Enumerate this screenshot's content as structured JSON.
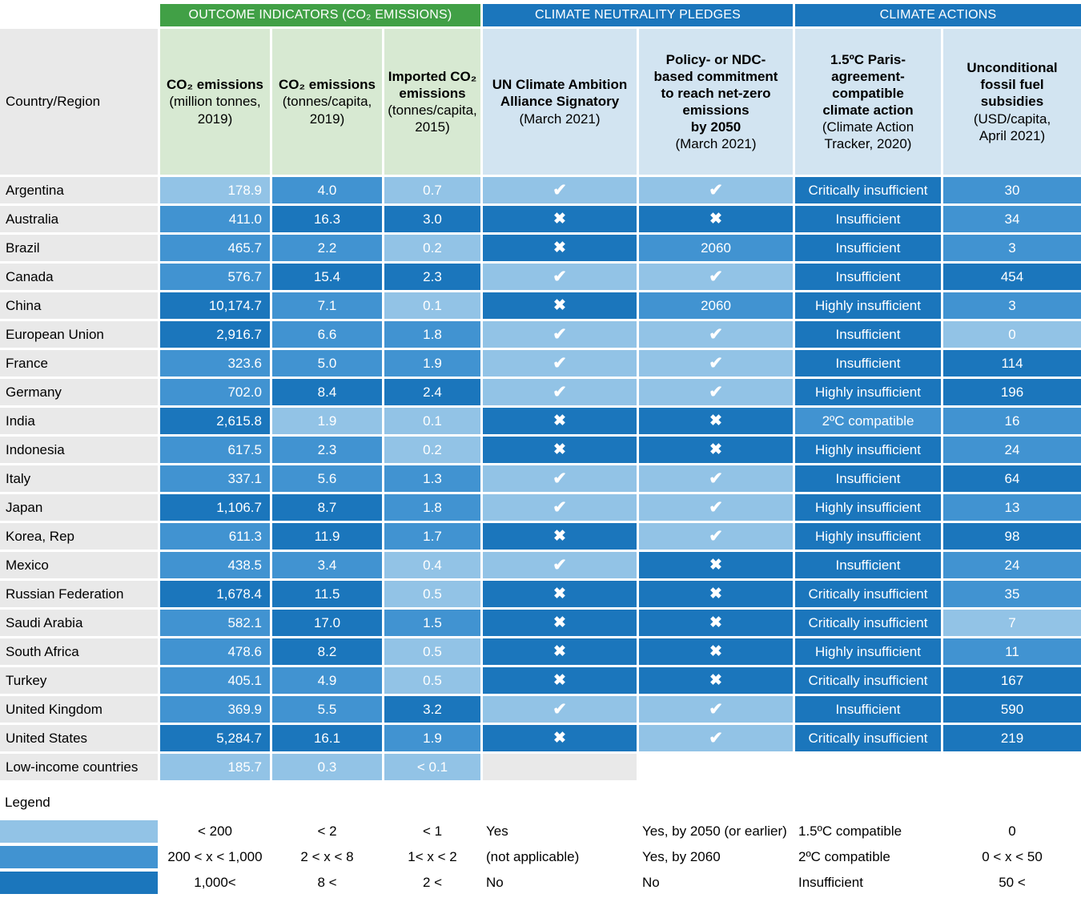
{
  "groups": [
    {
      "label": "OUTCOME INDICATORS (CO₂ EMISSIONS)"
    },
    {
      "label": "CLIMATE NEUTRALITY PLEDGES"
    },
    {
      "label": "CLIMATE ACTIONS"
    }
  ],
  "corner_label": "Country/Region",
  "chart_data": {
    "type": "table",
    "columns": [
      {
        "title": "CO₂ emissions",
        "subtitle": "(million tonnes,\n2019)",
        "group": "outcome",
        "theme": "green",
        "align": "right"
      },
      {
        "title": "CO₂ emissions",
        "subtitle": "(tonnes/capita,\n2019)",
        "group": "outcome",
        "theme": "green",
        "align": "center"
      },
      {
        "title": "Imported CO₂\nemissions",
        "subtitle": "(tonnes/capita,\n2015)",
        "group": "outcome",
        "theme": "green",
        "align": "center"
      },
      {
        "title": "UN Climate Ambition\nAlliance Signatory",
        "subtitle": "(March 2021)",
        "group": "pledges",
        "theme": "blue",
        "align": "center"
      },
      {
        "title": "Policy- or NDC-\nbased commitment\nto reach net-zero\nemissions\nby 2050",
        "subtitle": "(March 2021)",
        "group": "pledges",
        "theme": "blue",
        "align": "center"
      },
      {
        "title": "1.5ºC Paris-\nagreement-\ncompatible\nclimate action",
        "subtitle": "(Climate Action\nTracker, 2020)",
        "group": "actions",
        "theme": "blue",
        "align": "center"
      },
      {
        "title": "Unconditional\nfossil fuel\nsubsidies",
        "subtitle": "(USD/capita,\nApril 2021)",
        "group": "actions",
        "theme": "blue",
        "align": "center"
      }
    ],
    "rows": [
      {
        "country": "Argentina",
        "cells": [
          {
            "value": "178.9",
            "shade": "light"
          },
          {
            "value": "4.0",
            "shade": "mid"
          },
          {
            "value": "0.7",
            "shade": "light"
          },
          {
            "icon": "check",
            "shade": "light"
          },
          {
            "icon": "check",
            "shade": "light"
          },
          {
            "value": "Critically insufficient",
            "shade": "dark"
          },
          {
            "value": "30",
            "shade": "mid"
          }
        ]
      },
      {
        "country": "Australia",
        "cells": [
          {
            "value": "411.0",
            "shade": "mid"
          },
          {
            "value": "16.3",
            "shade": "dark"
          },
          {
            "value": "3.0",
            "shade": "dark"
          },
          {
            "icon": "cross",
            "shade": "dark"
          },
          {
            "icon": "cross",
            "shade": "dark"
          },
          {
            "value": "Insufficient",
            "shade": "dark"
          },
          {
            "value": "34",
            "shade": "mid"
          }
        ]
      },
      {
        "country": "Brazil",
        "cells": [
          {
            "value": "465.7",
            "shade": "mid"
          },
          {
            "value": "2.2",
            "shade": "mid"
          },
          {
            "value": "0.2",
            "shade": "light"
          },
          {
            "icon": "cross",
            "shade": "dark"
          },
          {
            "value": "2060",
            "shade": "mid"
          },
          {
            "value": "Insufficient",
            "shade": "dark"
          },
          {
            "value": "3",
            "shade": "mid"
          }
        ]
      },
      {
        "country": "Canada",
        "cells": [
          {
            "value": "576.7",
            "shade": "mid"
          },
          {
            "value": "15.4",
            "shade": "dark"
          },
          {
            "value": "2.3",
            "shade": "dark"
          },
          {
            "icon": "check",
            "shade": "light"
          },
          {
            "icon": "check",
            "shade": "light"
          },
          {
            "value": "Insufficient",
            "shade": "dark"
          },
          {
            "value": "454",
            "shade": "dark"
          }
        ]
      },
      {
        "country": "China",
        "cells": [
          {
            "value": "10,174.7",
            "shade": "dark"
          },
          {
            "value": "7.1",
            "shade": "mid"
          },
          {
            "value": "0.1",
            "shade": "light"
          },
          {
            "icon": "cross",
            "shade": "dark"
          },
          {
            "value": "2060",
            "shade": "mid"
          },
          {
            "value": "Highly insufficient",
            "shade": "dark"
          },
          {
            "value": "3",
            "shade": "mid"
          }
        ]
      },
      {
        "country": "European Union",
        "cells": [
          {
            "value": "2,916.7",
            "shade": "dark"
          },
          {
            "value": "6.6",
            "shade": "mid"
          },
          {
            "value": "1.8",
            "shade": "mid"
          },
          {
            "icon": "check",
            "shade": "light"
          },
          {
            "icon": "check",
            "shade": "light"
          },
          {
            "value": "Insufficient",
            "shade": "dark"
          },
          {
            "value": "0",
            "shade": "light"
          }
        ]
      },
      {
        "country": "France",
        "cells": [
          {
            "value": "323.6",
            "shade": "mid"
          },
          {
            "value": "5.0",
            "shade": "mid"
          },
          {
            "value": "1.9",
            "shade": "mid"
          },
          {
            "icon": "check",
            "shade": "light"
          },
          {
            "icon": "check",
            "shade": "light"
          },
          {
            "value": "Insufficient",
            "shade": "dark"
          },
          {
            "value": "114",
            "shade": "dark"
          }
        ]
      },
      {
        "country": "Germany",
        "cells": [
          {
            "value": "702.0",
            "shade": "mid"
          },
          {
            "value": "8.4",
            "shade": "dark"
          },
          {
            "value": "2.4",
            "shade": "dark"
          },
          {
            "icon": "check",
            "shade": "light"
          },
          {
            "icon": "check",
            "shade": "light"
          },
          {
            "value": "Highly insufficient",
            "shade": "dark"
          },
          {
            "value": "196",
            "shade": "dark"
          }
        ]
      },
      {
        "country": "India",
        "cells": [
          {
            "value": "2,615.8",
            "shade": "dark"
          },
          {
            "value": "1.9",
            "shade": "light"
          },
          {
            "value": "0.1",
            "shade": "light"
          },
          {
            "icon": "cross",
            "shade": "dark"
          },
          {
            "icon": "cross",
            "shade": "dark"
          },
          {
            "value": "2ºC compatible",
            "shade": "mid"
          },
          {
            "value": "16",
            "shade": "mid"
          }
        ]
      },
      {
        "country": "Indonesia",
        "cells": [
          {
            "value": "617.5",
            "shade": "mid"
          },
          {
            "value": "2.3",
            "shade": "mid"
          },
          {
            "value": "0.2",
            "shade": "light"
          },
          {
            "icon": "cross",
            "shade": "dark"
          },
          {
            "icon": "cross",
            "shade": "dark"
          },
          {
            "value": "Highly insufficient",
            "shade": "dark"
          },
          {
            "value": "24",
            "shade": "mid"
          }
        ]
      },
      {
        "country": "Italy",
        "cells": [
          {
            "value": "337.1",
            "shade": "mid"
          },
          {
            "value": "5.6",
            "shade": "mid"
          },
          {
            "value": "1.3",
            "shade": "mid"
          },
          {
            "icon": "check",
            "shade": "light"
          },
          {
            "icon": "check",
            "shade": "light"
          },
          {
            "value": "Insufficient",
            "shade": "dark"
          },
          {
            "value": "64",
            "shade": "dark"
          }
        ]
      },
      {
        "country": "Japan",
        "cells": [
          {
            "value": "1,106.7",
            "shade": "dark"
          },
          {
            "value": "8.7",
            "shade": "dark"
          },
          {
            "value": "1.8",
            "shade": "mid"
          },
          {
            "icon": "check",
            "shade": "light"
          },
          {
            "icon": "check",
            "shade": "light"
          },
          {
            "value": "Highly insufficient",
            "shade": "dark"
          },
          {
            "value": "13",
            "shade": "mid"
          }
        ]
      },
      {
        "country": "Korea, Rep",
        "cells": [
          {
            "value": "611.3",
            "shade": "mid"
          },
          {
            "value": "11.9",
            "shade": "dark"
          },
          {
            "value": "1.7",
            "shade": "mid"
          },
          {
            "icon": "cross",
            "shade": "dark"
          },
          {
            "icon": "check",
            "shade": "light"
          },
          {
            "value": "Highly insufficient",
            "shade": "dark"
          },
          {
            "value": "98",
            "shade": "dark"
          }
        ]
      },
      {
        "country": "Mexico",
        "cells": [
          {
            "value": "438.5",
            "shade": "mid"
          },
          {
            "value": "3.4",
            "shade": "mid"
          },
          {
            "value": "0.4",
            "shade": "light"
          },
          {
            "icon": "check",
            "shade": "light"
          },
          {
            "icon": "cross",
            "shade": "dark"
          },
          {
            "value": "Insufficient",
            "shade": "dark"
          },
          {
            "value": "24",
            "shade": "mid"
          }
        ]
      },
      {
        "country": "Russian Federation",
        "cells": [
          {
            "value": "1,678.4",
            "shade": "dark"
          },
          {
            "value": "11.5",
            "shade": "dark"
          },
          {
            "value": "0.5",
            "shade": "light"
          },
          {
            "icon": "cross",
            "shade": "dark"
          },
          {
            "icon": "cross",
            "shade": "dark"
          },
          {
            "value": "Critically insufficient",
            "shade": "dark"
          },
          {
            "value": "35",
            "shade": "mid"
          }
        ]
      },
      {
        "country": "Saudi Arabia",
        "cells": [
          {
            "value": "582.1",
            "shade": "mid"
          },
          {
            "value": "17.0",
            "shade": "dark"
          },
          {
            "value": "1.5",
            "shade": "mid"
          },
          {
            "icon": "cross",
            "shade": "dark"
          },
          {
            "icon": "cross",
            "shade": "dark"
          },
          {
            "value": "Critically insufficient",
            "shade": "dark"
          },
          {
            "value": "7",
            "shade": "light"
          }
        ]
      },
      {
        "country": "South Africa",
        "cells": [
          {
            "value": "478.6",
            "shade": "mid"
          },
          {
            "value": "8.2",
            "shade": "dark"
          },
          {
            "value": "0.5",
            "shade": "light"
          },
          {
            "icon": "cross",
            "shade": "dark"
          },
          {
            "icon": "cross",
            "shade": "dark"
          },
          {
            "value": "Highly insufficient",
            "shade": "dark"
          },
          {
            "value": "11",
            "shade": "mid"
          }
        ]
      },
      {
        "country": "Turkey",
        "cells": [
          {
            "value": "405.1",
            "shade": "mid"
          },
          {
            "value": "4.9",
            "shade": "mid"
          },
          {
            "value": "0.5",
            "shade": "light"
          },
          {
            "icon": "cross",
            "shade": "dark"
          },
          {
            "icon": "cross",
            "shade": "dark"
          },
          {
            "value": "Critically insufficient",
            "shade": "dark"
          },
          {
            "value": "167",
            "shade": "dark"
          }
        ]
      },
      {
        "country": "United Kingdom",
        "cells": [
          {
            "value": "369.9",
            "shade": "mid"
          },
          {
            "value": "5.5",
            "shade": "mid"
          },
          {
            "value": "3.2",
            "shade": "dark"
          },
          {
            "icon": "check",
            "shade": "light"
          },
          {
            "icon": "check",
            "shade": "light"
          },
          {
            "value": "Insufficient",
            "shade": "dark"
          },
          {
            "value": "590",
            "shade": "dark"
          }
        ]
      },
      {
        "country": "United States",
        "cells": [
          {
            "value": "5,284.7",
            "shade": "dark"
          },
          {
            "value": "16.1",
            "shade": "dark"
          },
          {
            "value": "1.9",
            "shade": "mid"
          },
          {
            "icon": "cross",
            "shade": "dark"
          },
          {
            "icon": "check",
            "shade": "light"
          },
          {
            "value": "Critically insufficient",
            "shade": "dark"
          },
          {
            "value": "219",
            "shade": "dark"
          }
        ]
      },
      {
        "country": "Low-income countries",
        "cells": [
          {
            "value": "185.7",
            "shade": "light"
          },
          {
            "value": "0.3",
            "shade": "light"
          },
          {
            "value": "< 0.1",
            "shade": "light"
          },
          {
            "shade": "gray"
          },
          {
            "shade": "none"
          },
          {
            "shade": "none"
          },
          {
            "shade": "none"
          }
        ]
      }
    ],
    "legend": {
      "title": "Legend",
      "rows": [
        {
          "shade": "light",
          "labels": [
            "< 200",
            "< 2",
            "< 1",
            "Yes",
            "Yes, by 2050 (or earlier)",
            "1.5ºC compatible",
            "0"
          ]
        },
        {
          "shade": "mid",
          "labels": [
            "200 < x < 1,000",
            "2 < x < 8",
            "1< x < 2",
            "(not applicable)",
            "Yes, by 2060",
            "2ºC compatible",
            "0 < x < 50"
          ]
        },
        {
          "shade": "dark",
          "labels": [
            "1,000<",
            "8 <",
            "2 <",
            "No",
            "No",
            "Insufficient",
            "50 <"
          ]
        }
      ]
    }
  },
  "icons": {
    "check": "✔",
    "cross": "✖"
  },
  "colors": {
    "green_header": "#41A046",
    "green_light": "#D7E9D2",
    "blue_header": "#1B76BC",
    "blue_light_header": "#D2E4F1",
    "cell_light": "#92C3E6",
    "cell_mid": "#4193D1",
    "cell_dark": "#1B76BC",
    "row_label_bg": "#E9E9E9",
    "empty_gray": "#E9E9E9"
  }
}
